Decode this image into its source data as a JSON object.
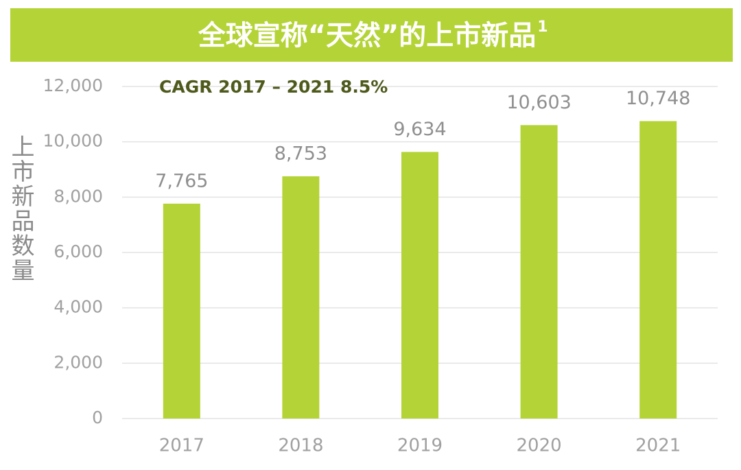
{
  "chart_data": {
    "type": "bar",
    "title": "全球宣称“天然”的上市新品",
    "title_note": "1",
    "annotation": "CAGR 2017 – 2021 8.5%",
    "y_label": "上市新品数量",
    "categories": [
      "2017",
      "2018",
      "2019",
      "2020",
      "2021"
    ],
    "values": [
      7765,
      8753,
      9634,
      10603,
      10748
    ],
    "value_labels": [
      "7,765",
      "8,753",
      "9,634",
      "10,603",
      "10,748"
    ],
    "color": "#b4d336",
    "ylim": [
      0,
      12000
    ],
    "yticks": [
      0,
      {
        "value": 2000,
        "label": "2,000"
      },
      {
        "value": 4000,
        "label": "4,000"
      },
      {
        "value": 6000,
        "label": "6,000"
      },
      {
        "value": 8000,
        "label": "8,000"
      },
      {
        "value": 10000,
        "label": "10,000"
      },
      {
        "value": 12000,
        "label": "12,000"
      }
    ],
    "grid": true
  }
}
